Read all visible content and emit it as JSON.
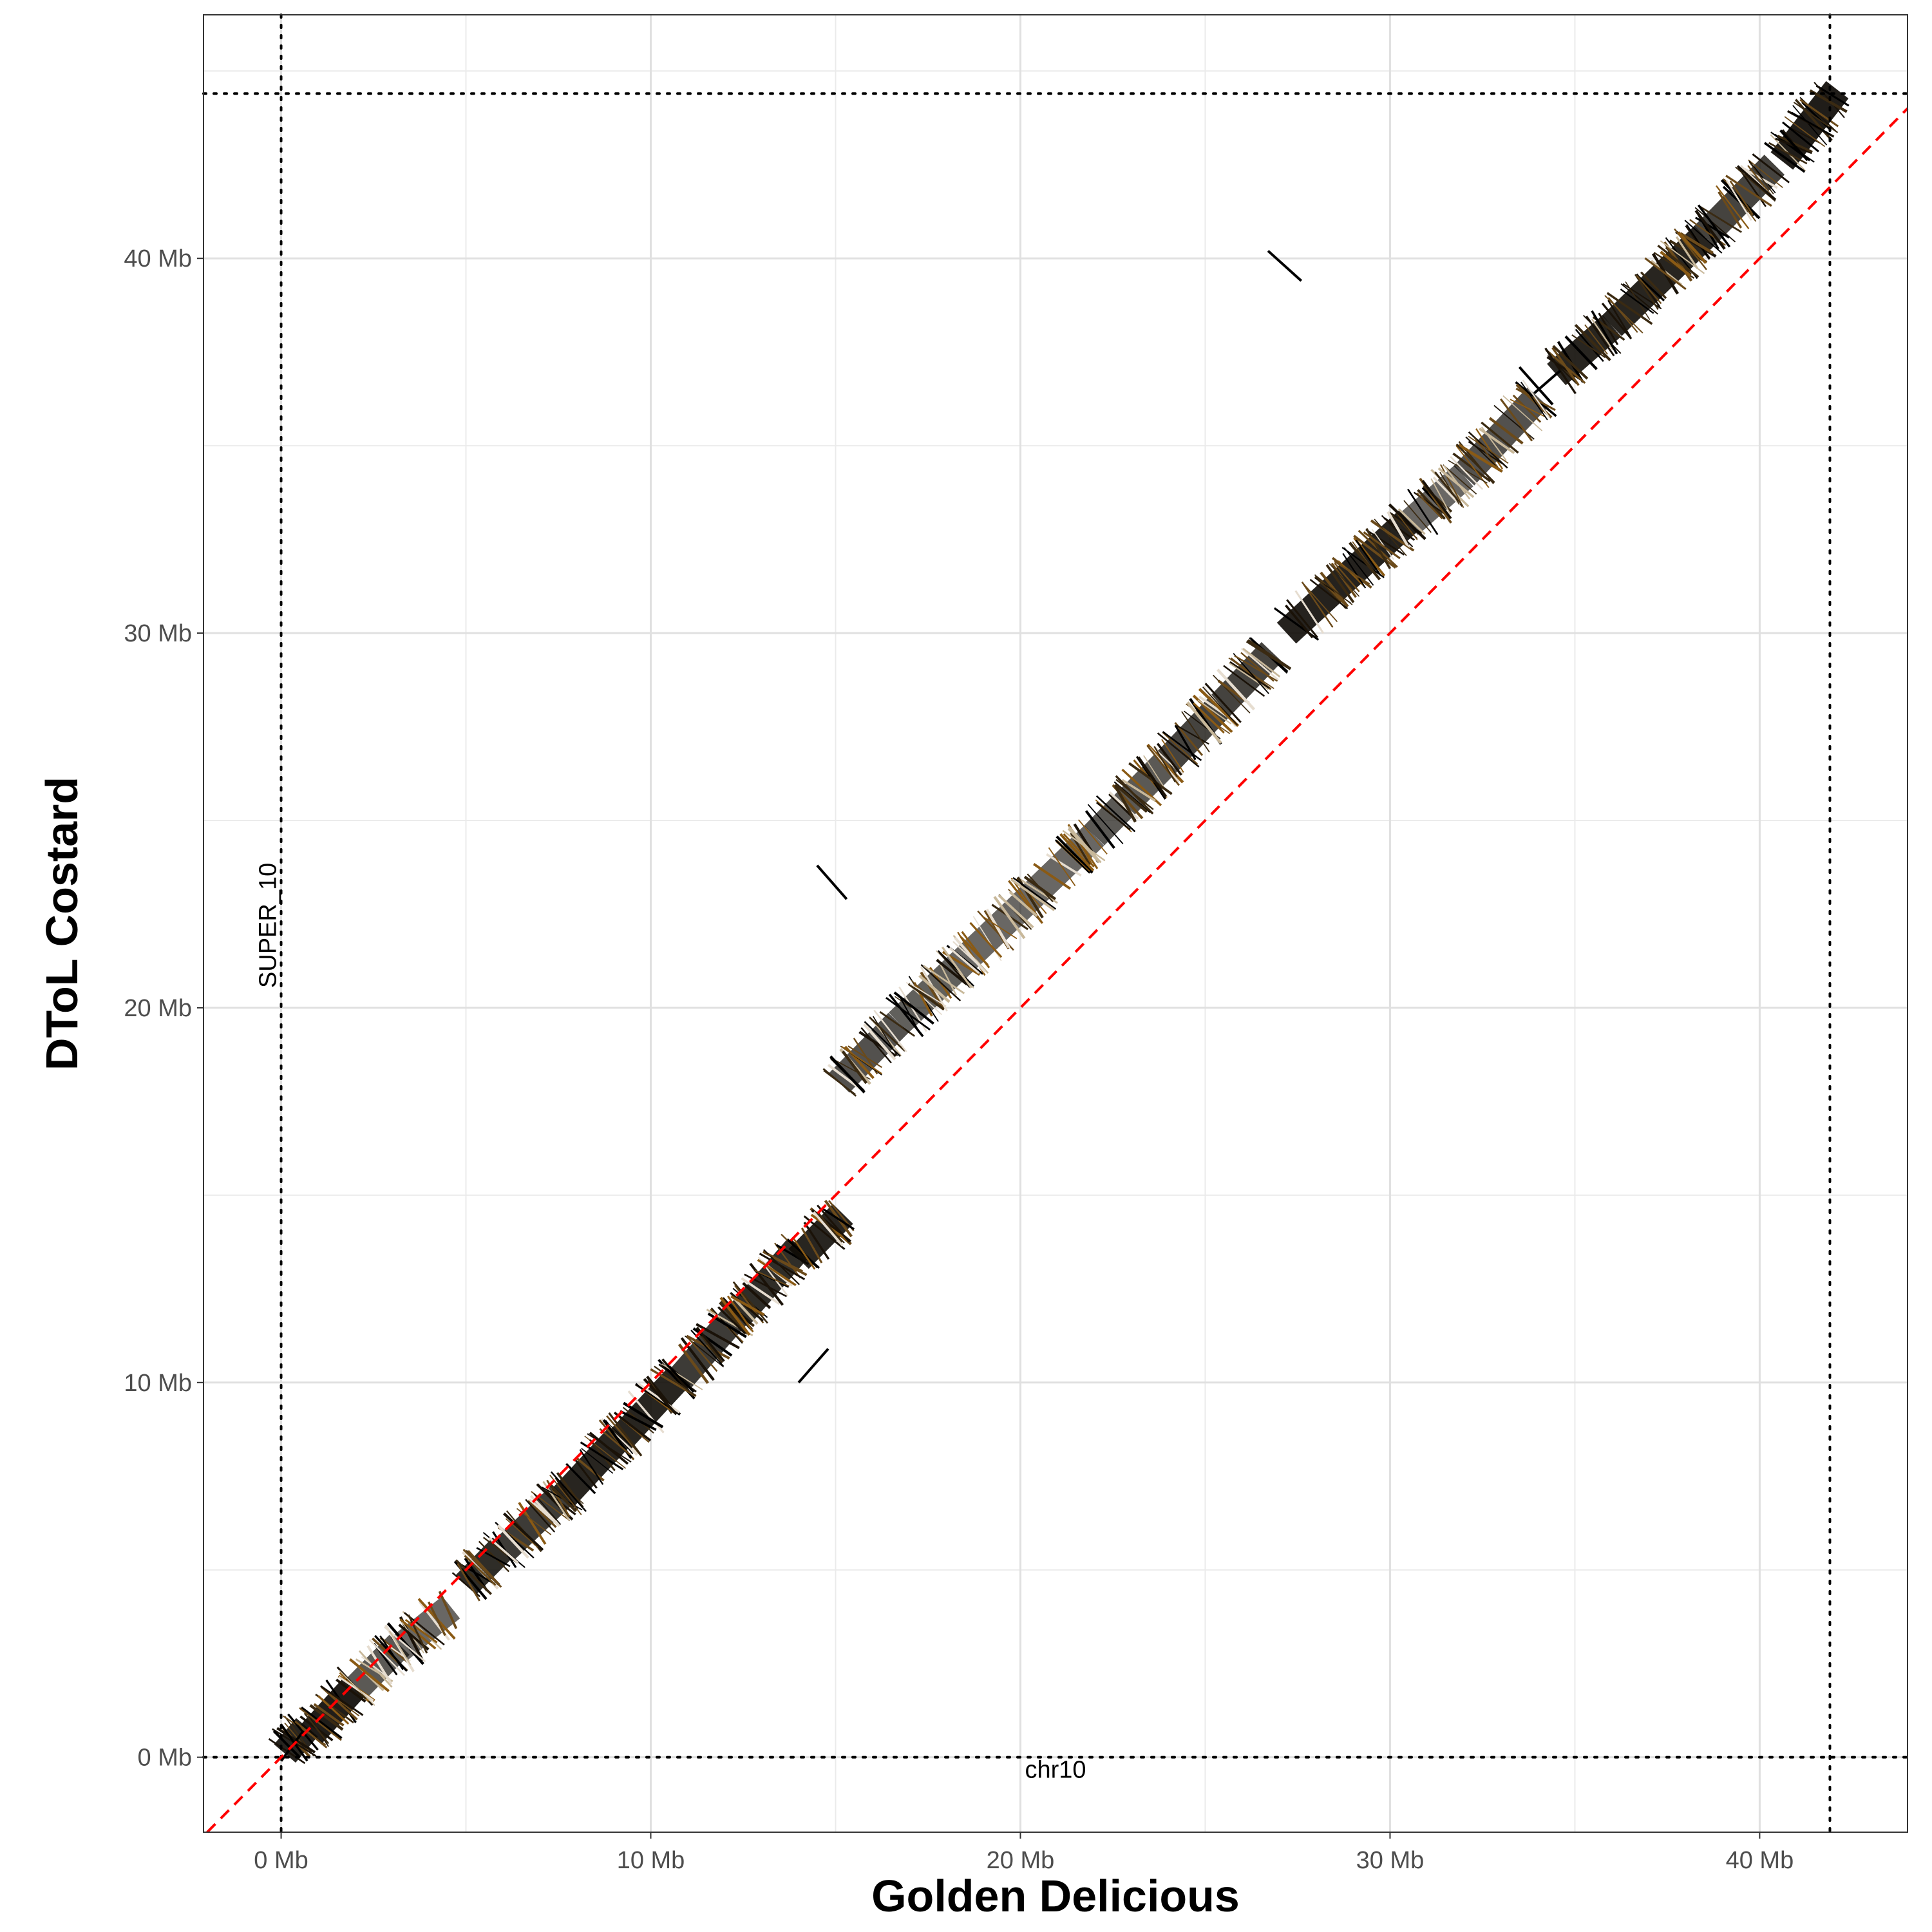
{
  "chart_data": {
    "type": "dotplot",
    "xlabel": "Golden Delicious",
    "ylabel": "DToL Costard",
    "xlim": [
      -2.1,
      44.0
    ],
    "ylim": [
      -2.0,
      46.5
    ],
    "x_ticks": [
      {
        "value": 0,
        "label": "0 Mb"
      },
      {
        "value": 10,
        "label": "10 Mb"
      },
      {
        "value": 20,
        "label": "20 Mb"
      },
      {
        "value": 30,
        "label": "30 Mb"
      },
      {
        "value": 40,
        "label": "40 Mb"
      }
    ],
    "y_ticks": [
      {
        "value": 0,
        "label": "0 Mb"
      },
      {
        "value": 10,
        "label": "10 Mb"
      },
      {
        "value": 20,
        "label": "20 Mb"
      },
      {
        "value": 30,
        "label": "30 Mb"
      },
      {
        "value": 40,
        "label": "40 Mb"
      }
    ],
    "x_minor_gridlines": [
      5,
      15,
      25,
      35
    ],
    "y_minor_gridlines": [
      5,
      15,
      25,
      35,
      45
    ],
    "grid": true,
    "sequence_boundaries": {
      "x": [
        0,
        41.9
      ],
      "y": [
        0,
        44.4
      ]
    },
    "sequence_labels": {
      "x": "chr10",
      "y": "SUPER_10"
    },
    "diagonal_reference": {
      "from": [
        -2.0,
        -2.0
      ],
      "to": [
        44.0,
        44.0
      ],
      "color": "#ff0000",
      "style": "dashed"
    },
    "alignment_colors": [
      "#000000",
      "#1a1208",
      "#3a2a12",
      "#6b4a1a",
      "#8a5a14",
      "#c8b89a",
      "#e6ddd0"
    ],
    "alignment_blocks": [
      {
        "x": [
          0.1,
          0.7
        ],
        "y": [
          0.1,
          0.8
        ],
        "density": 0.9
      },
      {
        "x": [
          0.8,
          2.0
        ],
        "y": [
          0.6,
          1.9
        ],
        "density": 0.95
      },
      {
        "x": [
          2.0,
          3.2
        ],
        "y": [
          1.8,
          3.0
        ],
        "density": 0.55
      },
      {
        "x": [
          3.2,
          4.6
        ],
        "y": [
          2.9,
          4.0
        ],
        "density": 0.45
      },
      {
        "x": [
          5.0,
          6.0
        ],
        "y": [
          4.6,
          5.6
        ],
        "density": 0.85
      },
      {
        "x": [
          6.0,
          7.6
        ],
        "y": [
          5.5,
          7.0
        ],
        "density": 0.75
      },
      {
        "x": [
          7.6,
          9.2
        ],
        "y": [
          6.9,
          8.6
        ],
        "density": 0.9
      },
      {
        "x": [
          9.2,
          10.8
        ],
        "y": [
          8.5,
          10.2
        ],
        "density": 0.9
      },
      {
        "x": [
          10.8,
          12.4
        ],
        "y": [
          10.1,
          11.9
        ],
        "density": 0.75
      },
      {
        "x": [
          12.4,
          14.0
        ],
        "y": [
          11.8,
          13.6
        ],
        "density": 0.85
      },
      {
        "x": [
          14.0,
          15.2
        ],
        "y": [
          13.3,
          14.5
        ],
        "density": 0.9
      },
      {
        "x": [
          15.1,
          16.7
        ],
        "y": [
          18.0,
          19.6
        ],
        "density": 0.6
      },
      {
        "x": [
          16.7,
          18.2
        ],
        "y": [
          19.6,
          21.0
        ],
        "density": 0.5
      },
      {
        "x": [
          18.2,
          19.8
        ],
        "y": [
          21.0,
          22.5
        ],
        "density": 0.45
      },
      {
        "x": [
          19.8,
          22.0
        ],
        "y": [
          22.5,
          24.6
        ],
        "density": 0.45
      },
      {
        "x": [
          22.0,
          24.0
        ],
        "y": [
          24.6,
          26.6
        ],
        "density": 0.55
      },
      {
        "x": [
          24.0,
          26.8
        ],
        "y": [
          26.6,
          29.5
        ],
        "density": 0.7
      },
      {
        "x": [
          27.2,
          30.5
        ],
        "y": [
          30.0,
          33.0
        ],
        "density": 0.92
      },
      {
        "x": [
          30.5,
          32.0
        ],
        "y": [
          32.9,
          34.2
        ],
        "density": 0.45
      },
      {
        "x": [
          32.0,
          34.0
        ],
        "y": [
          34.2,
          36.3
        ],
        "density": 0.6
      },
      {
        "x": [
          34.5,
          36.0
        ],
        "y": [
          36.9,
          38.2
        ],
        "density": 0.9
      },
      {
        "x": [
          36.0,
          38.5
        ],
        "y": [
          38.2,
          40.6
        ],
        "density": 0.9
      },
      {
        "x": [
          38.5,
          40.4
        ],
        "y": [
          40.6,
          42.5
        ],
        "density": 0.7
      },
      {
        "x": [
          40.6,
          42.1
        ],
        "y": [
          42.6,
          44.5
        ],
        "density": 0.95
      }
    ],
    "off_diagonal_segments": [
      {
        "x": [
          14.5,
          15.3
        ],
        "y": [
          23.8,
          22.9
        ]
      },
      {
        "x": [
          14.0,
          14.8
        ],
        "y": [
          10.0,
          10.9
        ]
      },
      {
        "x": [
          26.7,
          27.6
        ],
        "y": [
          40.2,
          39.4
        ]
      },
      {
        "x": [
          -0.2,
          0.5
        ],
        "y": [
          0.7,
          0.0
        ]
      },
      {
        "x": [
          0.0,
          0.6
        ],
        "y": [
          -0.1,
          0.7
        ]
      },
      {
        "x": [
          33.5,
          34.4
        ],
        "y": [
          37.1,
          36.1
        ]
      },
      {
        "x": [
          33.9,
          34.6
        ],
        "y": [
          36.4,
          37.0
        ]
      }
    ]
  }
}
